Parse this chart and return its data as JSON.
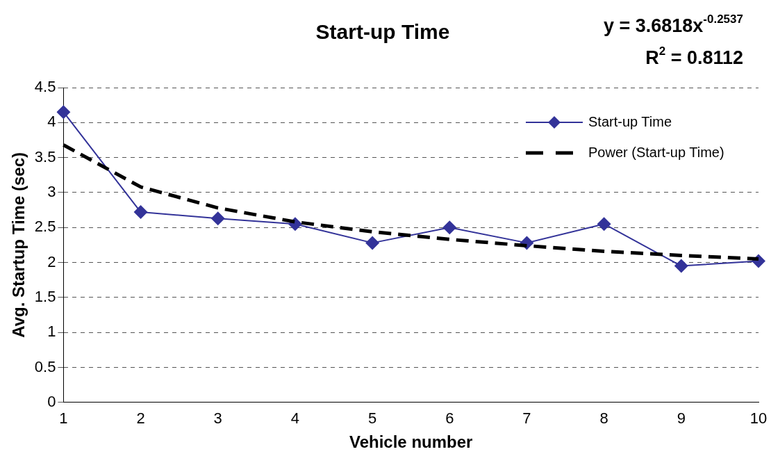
{
  "chart_data": {
    "type": "line",
    "title": "Start-up Time",
    "xlabel": "Vehicle number",
    "ylabel": "Avg. Startup Time (sec)",
    "categories": [
      "1",
      "2",
      "3",
      "4",
      "5",
      "6",
      "7",
      "8",
      "9",
      "10"
    ],
    "series": [
      {
        "name": "Start-up Time",
        "color": "#333399",
        "values": [
          4.15,
          2.72,
          2.63,
          2.55,
          2.28,
          2.5,
          2.28,
          2.55,
          1.95,
          2.02
        ],
        "marker": "diamond",
        "line_style": "solid"
      },
      {
        "name": "Power (Start-up Time)",
        "color": "#000000",
        "values": [
          3.68,
          3.08,
          2.78,
          2.58,
          2.44,
          2.33,
          2.24,
          2.16,
          2.1,
          2.05
        ],
        "marker": "none",
        "line_style": "dashed"
      }
    ],
    "ylim": [
      0,
      4.5
    ],
    "yticks": [
      0,
      0.5,
      1,
      1.5,
      2,
      2.5,
      3,
      3.5,
      4,
      4.5
    ],
    "grid": "y",
    "legend": "top right",
    "annotations": [
      "y = 3.6818x$^{-0.2537}$",
      "R$^{2}$ = 0.8112"
    ]
  }
}
